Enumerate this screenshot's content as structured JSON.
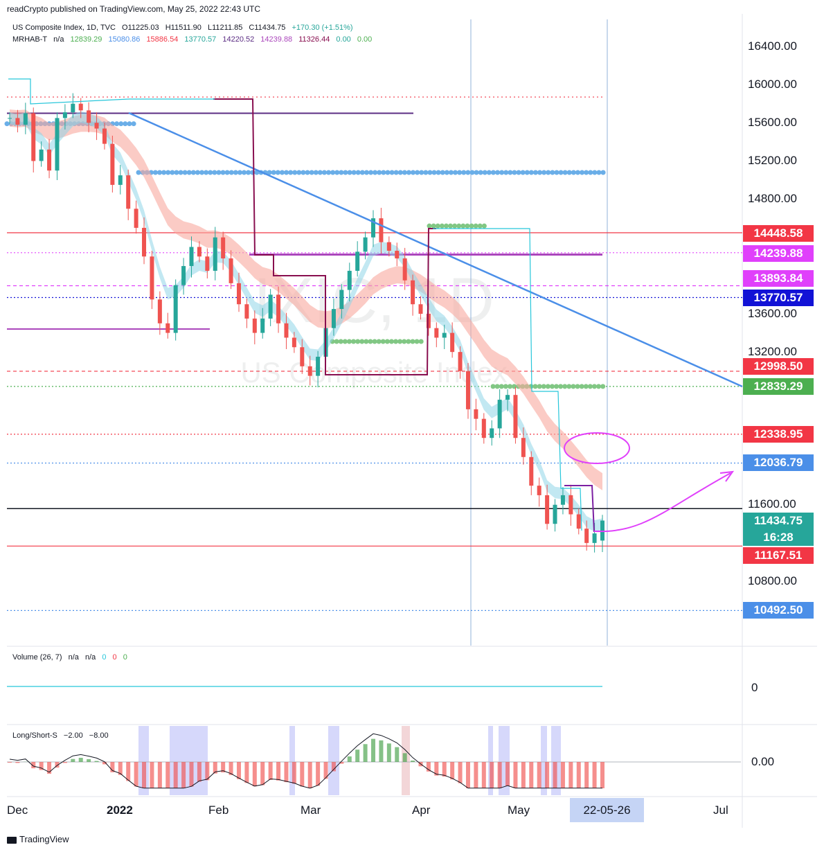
{
  "header": {
    "published": "readCrypto published on TradingView.com, May 25, 2022 22:43 UTC"
  },
  "legend": {
    "symbol_line": {
      "name": "US Composite Index, 1D, TVC",
      "open": "O11225.03",
      "high": "H11511.90",
      "low": "L11211.85",
      "close": "C11434.75",
      "change": "+170.30 (+1.51%)"
    },
    "indicator_line": {
      "name": "MRHAB-T",
      "na": "n/a",
      "values": [
        "12839.29",
        "15080.86",
        "15886.54",
        "13770.57",
        "14220.52",
        "14239.88",
        "11326.44",
        "0.00",
        "0.00"
      ]
    },
    "volume_line": {
      "name": "Volume (26, 7)",
      "na1": "n/a",
      "na2": "n/a",
      "z1": "0",
      "z2": "0",
      "z3": "0"
    },
    "ls_line": {
      "name": "Long/Short-S",
      "v1": "−2.00",
      "v2": "−8.00"
    }
  },
  "watermark": {
    "symbol": "IXIC, 1D",
    "name": "US Composite Index"
  },
  "price_axis": {
    "labels": [
      "16400.00",
      "16000.00",
      "15600.00",
      "15200.00",
      "14800.00",
      "13600.00",
      "13200.00",
      "11600.00",
      "10800.00"
    ]
  },
  "price_tags": [
    {
      "label": "14448.58",
      "value": 14448.58,
      "color": "#f23645"
    },
    {
      "label": "14239.88",
      "value": 14239.88,
      "color": "#e040fb"
    },
    {
      "label": "13893.84",
      "value": 13893.84,
      "color": "#e040fb"
    },
    {
      "label": "13770.57",
      "value": 13770.57,
      "color": "#1212d6"
    },
    {
      "label": "12998.50",
      "value": 12998.5,
      "color": "#f23645"
    },
    {
      "label": "12839.29",
      "value": 12839.29,
      "color": "#4caf50"
    },
    {
      "label": "12338.95",
      "value": 12338.95,
      "color": "#f23645"
    },
    {
      "label": "12036.79",
      "value": 12036.79,
      "color": "#4b8fe8"
    },
    {
      "label": "11434.75",
      "value": 11434.75,
      "color": "#26a69a"
    },
    {
      "label": "11167.51",
      "value": 11167.51,
      "color": "#f23645"
    },
    {
      "label": "10492.50",
      "value": 10492.5,
      "color": "#4b8fe8"
    }
  ],
  "countdown": "16:28",
  "volume_axis": {
    "zero": "0"
  },
  "ls_axis": {
    "zero": "0.00"
  },
  "time_axis": {
    "labels": [
      "Dec",
      "2022",
      "Feb",
      "Mar",
      "Apr",
      "May",
      "Jul"
    ],
    "cursor_label": "22-05-26"
  },
  "footer": {
    "brand": "TradingView"
  },
  "colors": {
    "up": "#26a69a",
    "down": "#ef5350",
    "accent_blue": "#4b8fe8",
    "resistance_red": "#f23645",
    "magenta": "#e040fb",
    "green": "#4caf50"
  },
  "chart_data": {
    "type": "candlestick",
    "title": "US Composite Index, 1D, TVC",
    "ylim": [
      10300,
      16800
    ],
    "last": {
      "open": 11225.03,
      "high": 11511.9,
      "low": 11211.85,
      "close": 11434.75
    },
    "levels": [
      14448.58,
      14239.88,
      13893.84,
      13770.57,
      12998.5,
      12839.29,
      12338.95,
      12036.79,
      11434.75,
      11167.51,
      10492.5
    ],
    "trendline": [
      [
        15750,
        "2022-01-03"
      ],
      [
        12850,
        "2022-06-16"
      ]
    ],
    "close_path": [
      15650,
      15580,
      15700,
      15200,
      15320,
      15100,
      15650,
      15710,
      15800,
      15730,
      15600,
      15540,
      15380,
      14950,
      15050,
      14700,
      14500,
      14200,
      13750,
      13500,
      13400,
      13900,
      14100,
      14300,
      14200,
      14050,
      14400,
      14180,
      13920,
      13700,
      13550,
      13400,
      13550,
      13800,
      13500,
      13350,
      13250,
      13050,
      12950,
      13150,
      13450,
      13650,
      13850,
      14050,
      14250,
      14400,
      14600,
      14350,
      14260,
      14180,
      13950,
      13700,
      13600,
      13450,
      13350,
      13400,
      13200,
      13000,
      12600,
      12500,
      12300,
      12400,
      12700,
      12750,
      12300,
      12100,
      11800,
      11700,
      11400,
      11600,
      11700,
      11500,
      11350,
      11200,
      11300,
      11434.75
    ]
  }
}
